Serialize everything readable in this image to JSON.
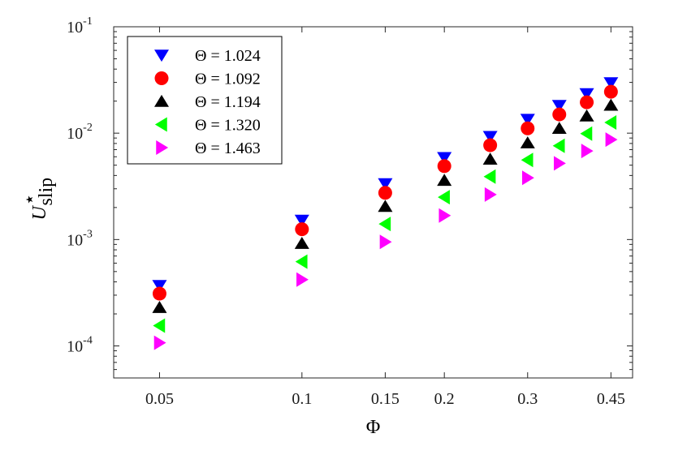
{
  "chart_data": {
    "type": "scatter",
    "x_scale": "log",
    "y_scale": "log",
    "xlabel": "Φ",
    "ylabel": {
      "base": "U",
      "superscript": "⋆",
      "subscript": "slip"
    },
    "xlim": [
      0.04,
      0.5
    ],
    "ylim": [
      5e-05,
      0.1
    ],
    "x_ticks": [
      {
        "value": 0.05,
        "label": "0.05"
      },
      {
        "value": 0.1,
        "label": "0.1"
      },
      {
        "value": 0.15,
        "label": "0.15"
      },
      {
        "value": 0.2,
        "label": "0.2"
      },
      {
        "value": 0.3,
        "label": "0.3"
      },
      {
        "value": 0.45,
        "label": "0.45"
      }
    ],
    "y_ticks": [
      {
        "value": 0.0001,
        "base": "10",
        "exp": "-4"
      },
      {
        "value": 0.001,
        "base": "10",
        "exp": "-3"
      },
      {
        "value": 0.01,
        "base": "10",
        "exp": "-2"
      },
      {
        "value": 0.1,
        "base": "10",
        "exp": "-1"
      }
    ],
    "grid": false,
    "legend_position": "top-left",
    "x": [
      0.05,
      0.1,
      0.15,
      0.2,
      0.25,
      0.3,
      0.35,
      0.4,
      0.45
    ],
    "series": [
      {
        "name": "Θ = 1.024",
        "marker": "triangle-down",
        "color": "#0000ff",
        "values": [
          0.00037,
          0.00152,
          0.00335,
          0.0059,
          0.0093,
          0.0135,
          0.0182,
          0.0235,
          0.0298
        ]
      },
      {
        "name": "Θ = 1.092",
        "marker": "circle",
        "color": "#ff0000",
        "values": [
          0.00031,
          0.00125,
          0.00275,
          0.0049,
          0.0077,
          0.0111,
          0.015,
          0.0195,
          0.0245
        ]
      },
      {
        "name": "Θ = 1.194",
        "marker": "triangle-up",
        "color": "#000000",
        "values": [
          0.00023,
          0.00092,
          0.00205,
          0.0036,
          0.0057,
          0.0081,
          0.0111,
          0.0145,
          0.0183
        ]
      },
      {
        "name": "Θ = 1.320",
        "marker": "triangle-left",
        "color": "#00ff00",
        "values": [
          0.000155,
          0.00062,
          0.0014,
          0.0025,
          0.0039,
          0.0056,
          0.0076,
          0.0099,
          0.0126
        ]
      },
      {
        "name": "Θ = 1.463",
        "marker": "triangle-right",
        "color": "#ff00ff",
        "values": [
          0.000107,
          0.00042,
          0.00095,
          0.00168,
          0.00265,
          0.0038,
          0.0052,
          0.0068,
          0.0087
        ]
      }
    ]
  }
}
